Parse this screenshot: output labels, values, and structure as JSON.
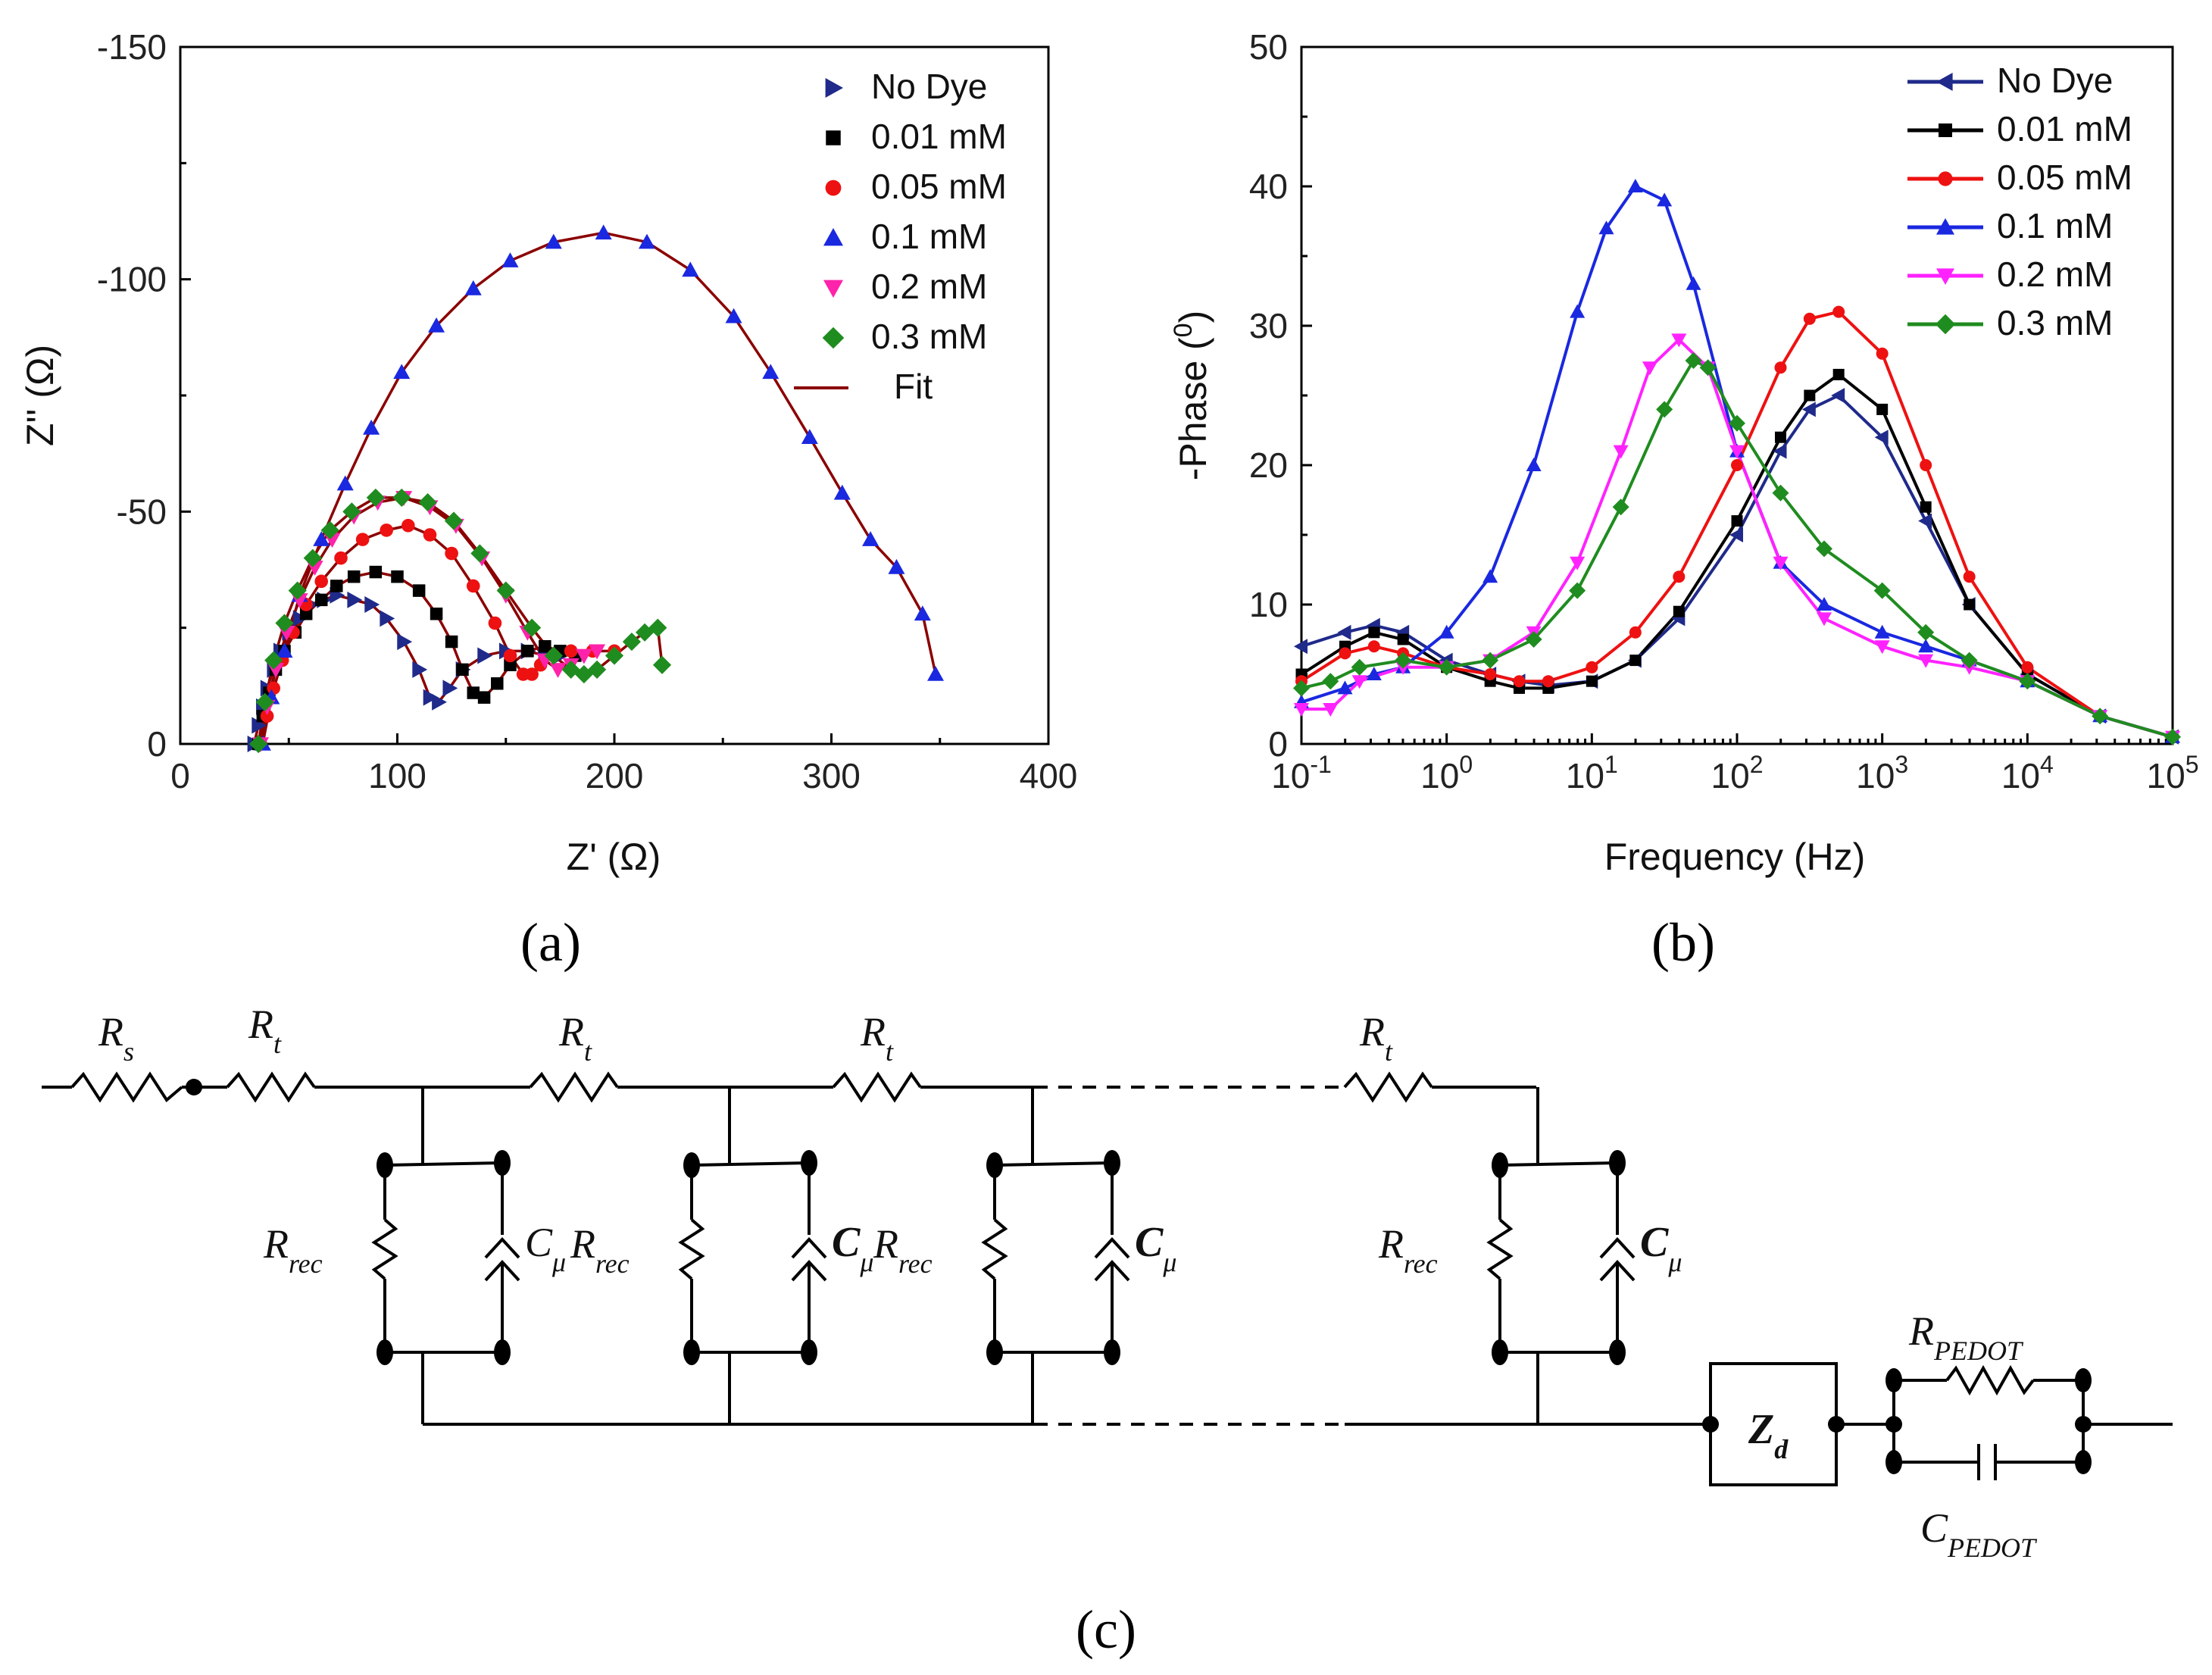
{
  "figure": {
    "panel_labels": [
      "(a)",
      "(b)",
      "(c)"
    ]
  },
  "chart_data": [
    {
      "type": "scatter",
      "panel": "(a)",
      "title": "",
      "xlabel": "Z' (Ω)",
      "ylabel": "Z'' (Ω)",
      "xlim": [
        0,
        400
      ],
      "ylim": [
        -150,
        0
      ],
      "xticks": [
        0,
        100,
        200,
        300,
        400
      ],
      "yticks": [
        0,
        -50,
        -100,
        -150
      ],
      "xtick_labels": [
        "0",
        "100",
        "200",
        "300",
        "400"
      ],
      "ytick_labels": [
        "0",
        "-50",
        "-100",
        "-150"
      ],
      "legend_position": "top-right",
      "series": [
        {
          "name": "No Dye",
          "marker": "triangle-right",
          "color": "#1f2a8a",
          "x": [
            34,
            36,
            38,
            40,
            43,
            46,
            50,
            55,
            60,
            66,
            72,
            80,
            88,
            95,
            103,
            110,
            115,
            119,
            124,
            130,
            140,
            150,
            160,
            168,
            175
          ],
          "y": [
            0,
            -4,
            -8,
            -12,
            -16,
            -20,
            -24,
            -27,
            -30,
            -31,
            -32,
            -31,
            -30,
            -27,
            -22,
            -16,
            -10,
            -9,
            -12,
            -16,
            -19,
            -20,
            -20,
            -19,
            -19
          ]
        },
        {
          "name": "0.01 mM",
          "marker": "square",
          "color": "#000000",
          "x": [
            36,
            38,
            41,
            44,
            48,
            53,
            58,
            65,
            72,
            80,
            90,
            100,
            110,
            118,
            125,
            130,
            135,
            140,
            146,
            152,
            160,
            168,
            175,
            182
          ],
          "y": [
            0,
            -6,
            -11,
            -16,
            -20,
            -24,
            -28,
            -31,
            -34,
            -36,
            -37,
            -36,
            -33,
            -28,
            -22,
            -16,
            -11,
            -10,
            -13,
            -17,
            -20,
            -21,
            -20,
            -19
          ]
        },
        {
          "name": "0.05 mM",
          "marker": "circle",
          "color": "#ee1111",
          "x": [
            37,
            40,
            43,
            47,
            52,
            58,
            65,
            74,
            84,
            95,
            105,
            115,
            125,
            135,
            145,
            152,
            158,
            162,
            166,
            172,
            180,
            190,
            200
          ],
          "y": [
            0,
            -6,
            -12,
            -18,
            -24,
            -30,
            -35,
            -40,
            -44,
            -46,
            -47,
            -45,
            -41,
            -34,
            -26,
            -19,
            -15,
            -15,
            -17,
            -19,
            -20,
            -20,
            -20
          ]
        },
        {
          "name": "0.1 mM",
          "marker": "triangle-up",
          "color": "#1a28e0",
          "x": [
            38,
            42,
            48,
            55,
            65,
            76,
            88,
            102,
            118,
            135,
            152,
            172,
            195,
            215,
            235,
            255,
            272,
            290,
            305,
            318,
            330,
            342,
            348
          ],
          "y": [
            0,
            -10,
            -20,
            -32,
            -44,
            -56,
            -68,
            -80,
            -90,
            -98,
            -104,
            -108,
            -110,
            -108,
            -102,
            -92,
            -80,
            -66,
            -54,
            -44,
            -38,
            -28,
            -15
          ]
        },
        {
          "name": "0.2 mM",
          "marker": "triangle-down",
          "color": "#ff22aa",
          "x": [
            37,
            40,
            44,
            49,
            55,
            62,
            70,
            80,
            91,
            103,
            115,
            127,
            139,
            150,
            160,
            168,
            174,
            180,
            186,
            192
          ],
          "y": [
            0,
            -8,
            -16,
            -24,
            -31,
            -38,
            -44,
            -49,
            -52,
            -53,
            -51,
            -47,
            -40,
            -32,
            -24,
            -18,
            -16,
            -17,
            -19,
            -20
          ]
        },
        {
          "name": "0.3 mM",
          "marker": "diamond",
          "color": "#1f8c1f",
          "x": [
            36,
            39,
            43,
            48,
            54,
            61,
            69,
            79,
            90,
            102,
            114,
            126,
            138,
            150,
            162,
            172,
            180,
            186,
            192,
            200,
            208,
            214,
            220,
            222
          ],
          "y": [
            0,
            -9,
            -18,
            -26,
            -33,
            -40,
            -46,
            -50,
            -53,
            -53,
            -52,
            -48,
            -41,
            -33,
            -25,
            -19,
            -16,
            -15,
            -16,
            -19,
            -22,
            -24,
            -25,
            -17
          ]
        }
      ],
      "fit": {
        "name": "Fit",
        "color": "#8b0000"
      }
    },
    {
      "type": "line",
      "panel": "(b)",
      "title": "",
      "xlabel": "Frequency (Hz)",
      "ylabel": "-Phase (0)",
      "xscale": "log",
      "xlim_exp": [
        -1,
        5
      ],
      "ylim": [
        0,
        50
      ],
      "xtick_exponents": [
        -1,
        0,
        1,
        2,
        3,
        4,
        5
      ],
      "yticks": [
        0,
        10,
        20,
        30,
        40,
        50
      ],
      "ytick_labels": [
        "0",
        "10",
        "20",
        "30",
        "40",
        "50"
      ],
      "xtick_base": "10",
      "legend_position": "top-right",
      "series": [
        {
          "name": "No Dye",
          "marker": "triangle-left",
          "color": "#1f2a8a",
          "logx": [
            -1,
            -0.7,
            -0.5,
            -0.3,
            0,
            0.3,
            0.5,
            0.7,
            1,
            1.3,
            1.6,
            2,
            2.3,
            2.5,
            2.7,
            3,
            3.3,
            3.6,
            4,
            4.5,
            5
          ],
          "y": [
            7,
            8,
            8.5,
            8,
            6,
            5,
            4.5,
            4.2,
            4.5,
            6,
            9,
            15,
            21,
            24,
            25,
            22,
            16,
            10,
            5,
            2,
            0.5
          ]
        },
        {
          "name": "0.01 mM",
          "marker": "square",
          "color": "#000000",
          "logx": [
            -1,
            -0.7,
            -0.5,
            -0.3,
            0,
            0.3,
            0.5,
            0.7,
            1,
            1.3,
            1.6,
            2,
            2.3,
            2.5,
            2.7,
            3,
            3.3,
            3.6,
            4,
            4.5,
            5
          ],
          "y": [
            5,
            7,
            8,
            7.5,
            5.5,
            4.5,
            4,
            4,
            4.5,
            6,
            9.5,
            16,
            22,
            25,
            26.5,
            24,
            17,
            10,
            5,
            2,
            0.5
          ]
        },
        {
          "name": "0.05 mM",
          "marker": "circle",
          "color": "#ee1111",
          "logx": [
            -1,
            -0.7,
            -0.5,
            -0.3,
            0,
            0.3,
            0.5,
            0.7,
            1,
            1.3,
            1.6,
            2,
            2.3,
            2.5,
            2.7,
            3,
            3.3,
            3.6,
            4,
            4.5,
            5
          ],
          "y": [
            4.5,
            6.5,
            7,
            6.5,
            5.5,
            5,
            4.5,
            4.5,
            5.5,
            8,
            12,
            20,
            27,
            30.5,
            31,
            28,
            20,
            12,
            5.5,
            2,
            0.5
          ]
        },
        {
          "name": "0.1 mM",
          "marker": "triangle-up",
          "color": "#1a28e0",
          "logx": [
            -1,
            -0.7,
            -0.5,
            -0.3,
            0,
            0.3,
            0.6,
            0.9,
            1.1,
            1.3,
            1.5,
            1.7,
            2,
            2.3,
            2.6,
            3,
            3.3,
            3.6,
            4,
            4.5,
            5
          ],
          "y": [
            3,
            4,
            5,
            5.5,
            8,
            12,
            20,
            31,
            37,
            40,
            39,
            33,
            21,
            13,
            10,
            8,
            7,
            6,
            4.5,
            2,
            0.5
          ]
        },
        {
          "name": "0.2 mM",
          "marker": "triangle-down",
          "color": "#ff22ff",
          "logx": [
            -1,
            -0.8,
            -0.6,
            -0.3,
            0,
            0.3,
            0.6,
            0.9,
            1.2,
            1.4,
            1.6,
            1.8,
            2,
            2.3,
            2.6,
            3,
            3.3,
            3.6,
            4,
            4.5,
            5
          ],
          "y": [
            2.5,
            2.5,
            4.5,
            5.5,
            5.5,
            6,
            8,
            13,
            21,
            27,
            29,
            27,
            21,
            13,
            9,
            7,
            6,
            5.5,
            4.5,
            2,
            0.5
          ]
        },
        {
          "name": "0.3 mM",
          "marker": "diamond",
          "color": "#1f8c1f",
          "logx": [
            -1,
            -0.8,
            -0.6,
            -0.3,
            0,
            0.3,
            0.6,
            0.9,
            1.2,
            1.5,
            1.7,
            1.8,
            2,
            2.3,
            2.6,
            3,
            3.3,
            3.6,
            4,
            4.5,
            5
          ],
          "y": [
            4,
            4.5,
            5.5,
            6,
            5.5,
            6,
            7.5,
            11,
            17,
            24,
            27.5,
            27,
            23,
            18,
            14,
            11,
            8,
            6,
            4.5,
            2,
            0.5
          ]
        }
      ]
    }
  ],
  "circuit": {
    "rs": {
      "main": "R",
      "sub": "s"
    },
    "rt": {
      "main": "R",
      "sub": "t"
    },
    "rrec": {
      "main": "R",
      "sub": "rec"
    },
    "cmu": {
      "main": "C",
      "sub": "μ"
    },
    "zd": {
      "main": "Z",
      "sub": "d"
    },
    "rpedot": {
      "main": "R",
      "sub": "PEDOT"
    },
    "cpedot": {
      "main": "C",
      "sub": "PEDOT"
    }
  }
}
